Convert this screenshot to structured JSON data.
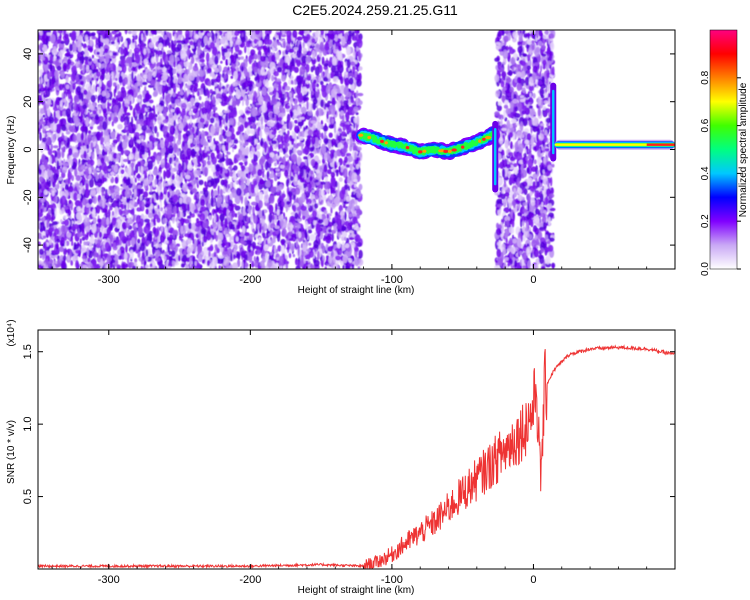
{
  "title": "C2E5.2024.259.21.25.G11",
  "chart_data": [
    {
      "type": "heatmap",
      "title": "C2E5.2024.259.21.25.G11",
      "xlabel": "Height of straight line (km)",
      "ylabel": "Frequency (Hz)",
      "xlim": [
        -350,
        100
      ],
      "ylim": [
        -50,
        50
      ],
      "x_ticks": [
        -300,
        -200,
        -100,
        0
      ],
      "x_tick_labels": [
        "-300",
        "-200",
        "-100",
        "0"
      ],
      "y_ticks": [
        -40,
        -20,
        0,
        20,
        40
      ],
      "y_tick_labels": [
        "-40",
        "-20",
        "0",
        "20",
        "40"
      ],
      "colorbar": {
        "label": "Normalized spectral amplitude",
        "range": [
          0,
          1
        ],
        "ticks": [
          0.0,
          0.2,
          0.4,
          0.6,
          0.8
        ],
        "tick_labels": [
          "0.0",
          "0.2",
          "0.4",
          "0.6",
          "0.8"
        ],
        "colormap": [
          "#ffffff",
          "#c9a8f5",
          "#8000ff",
          "#0000ff",
          "#00c8ff",
          "#00ff80",
          "#40ff00",
          "#ffff00",
          "#ff8000",
          "#ff0000",
          "#ff0080"
        ]
      },
      "noise_regions_x": [
        [
          -350,
          -122
        ],
        [
          -26,
          14
        ]
      ],
      "tone_track": {
        "x": [
          -122,
          -110,
          -100,
          -90,
          -80,
          -70,
          -60,
          -50,
          -40,
          -32,
          -28
        ],
        "y": [
          6,
          4,
          2,
          1,
          -1,
          0,
          -1,
          1,
          3,
          5,
          7
        ]
      },
      "steady_tone": {
        "x_range": [
          15,
          100
        ],
        "y": 2
      }
    },
    {
      "type": "line",
      "xlabel": "Height of straight line (km)",
      "ylabel": "SNR (10 * v/v)",
      "y_multiplier_label": "(x10⁴)",
      "xlim": [
        -350,
        100
      ],
      "ylim": [
        0,
        1.65
      ],
      "x_ticks": [
        -300,
        -200,
        -100,
        0
      ],
      "x_tick_labels": [
        "-300",
        "-200",
        "-100",
        "0"
      ],
      "y_ticks": [
        0.5,
        1.0,
        1.5
      ],
      "y_tick_labels": [
        "0.5",
        "1.0",
        "1.5"
      ],
      "line_color": "#ee3333",
      "series": [
        {
          "x": [
            -350,
            -300,
            -250,
            -200,
            -150,
            -120,
            -110,
            -100,
            -90,
            -80,
            -70,
            -60,
            -50,
            -40,
            -30,
            -20,
            -10,
            -5,
            0,
            2,
            5,
            8,
            15,
            25,
            40,
            60,
            80,
            100
          ],
          "y": [
            0.02,
            0.02,
            0.02,
            0.02,
            0.03,
            0.02,
            0.05,
            0.1,
            0.18,
            0.25,
            0.32,
            0.42,
            0.52,
            0.62,
            0.72,
            0.82,
            0.93,
            1.0,
            1.1,
            1.3,
            0.6,
            1.25,
            1.38,
            1.48,
            1.52,
            1.53,
            1.52,
            1.48
          ]
        }
      ]
    }
  ]
}
